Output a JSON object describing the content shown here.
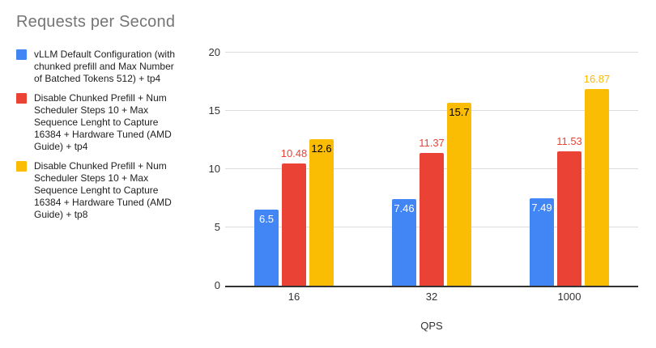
{
  "chart_data": {
    "type": "bar",
    "title": "Requests per Second",
    "xlabel": "QPS",
    "ylabel": "",
    "categories": [
      "16",
      "32",
      "1000"
    ],
    "series": [
      {
        "name": "vLLM Default Configuration (with chunked prefill and Max Number of Batched Tokens 512) + tp4",
        "color": "#4285F4",
        "inside_label_color": "#ffffff",
        "values": [
          6.5,
          7.46,
          7.49
        ],
        "labels": [
          "6.5",
          "7.46",
          "7.49"
        ],
        "label_placement": [
          "inside",
          "inside",
          "inside"
        ]
      },
      {
        "name": "Disable Chunked Prefill + Num Scheduler Steps 10 + Max Sequence Lenght to Capture 16384 + Hardware Tuned (AMD Guide) + tp4",
        "color": "#EA4335",
        "inside_label_color": "#ffffff",
        "values": [
          10.48,
          11.37,
          11.53
        ],
        "labels": [
          "10.48",
          "11.37",
          "11.53"
        ],
        "label_placement": [
          "above",
          "above",
          "above"
        ]
      },
      {
        "name": "Disable Chunked Prefill + Num Scheduler Steps 10 + Max Sequence Lenght to Capture 16384 + Hardware Tuned (AMD Guide) + tp8",
        "color": "#FBBC04",
        "inside_label_color": "#000000",
        "values": [
          12.6,
          15.7,
          16.87
        ],
        "labels": [
          "12.6",
          "15.7",
          "16.87"
        ],
        "label_placement": [
          "inside",
          "inside",
          "above"
        ]
      }
    ],
    "legend_lines": [
      [
        "vLLM Default Configuration (with",
        "chunked prefill and Max Number",
        "of Batched Tokens 512) + tp4"
      ],
      [
        "Disable Chunked Prefill + Num",
        "Scheduler Steps 10 + Max",
        "Sequence Lenght to Capture",
        "16384 + Hardware Tuned (AMD",
        "Guide) + tp4"
      ],
      [
        "Disable Chunked Prefill + Num",
        "Scheduler Steps 10 + Max",
        "Sequence Lenght to Capture",
        "16384 + Hardware Tuned (AMD",
        "Guide) + tp8"
      ]
    ],
    "ylim": [
      0,
      20
    ],
    "yticks": [
      0,
      5,
      10,
      15,
      20
    ],
    "grid": true,
    "legend_position": "left"
  },
  "colors": {
    "title_text": "#757575",
    "legend_text": "#212121",
    "axis_text": "#333333",
    "gridline": "#dadce0",
    "axis_line": "#333333",
    "background": "#ffffff"
  }
}
